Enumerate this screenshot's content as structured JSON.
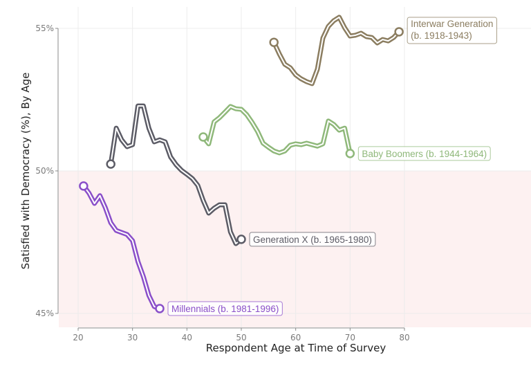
{
  "chart_data": {
    "type": "line",
    "title": "",
    "xlabel": "Respondent Age at Time of Survey",
    "ylabel": "Satisfied with Democracy (%), By Age",
    "xlim": [
      17,
      80
    ],
    "ylim": [
      44.5,
      55.5
    ],
    "x_ticks": [
      20,
      30,
      40,
      50,
      60,
      70,
      80
    ],
    "y_ticks": [
      45,
      50,
      55
    ],
    "y_tick_labels": [
      "45%",
      "50%",
      "55%"
    ],
    "grid": true,
    "shaded_region": {
      "y_from": 44.5,
      "y_to": 50,
      "color": "#fdf1f1",
      "meaning": "below 50% satisfaction"
    },
    "series": [
      {
        "name": "Interwar Generation",
        "label_line1": "Interwar Generation",
        "label_line2": " (b. 1918-1943)",
        "color": "#8b7d60",
        "x": [
          56,
          57,
          58,
          59,
          60,
          61,
          62,
          63,
          64,
          65,
          66,
          67,
          68,
          69,
          70,
          71,
          72,
          73,
          74,
          75,
          76,
          77,
          78,
          79
        ],
        "values": [
          54.51,
          54.1,
          53.74,
          53.62,
          53.37,
          53.23,
          53.13,
          53.06,
          53.57,
          54.66,
          55.07,
          55.27,
          55.39,
          55.02,
          54.73,
          54.76,
          54.83,
          54.71,
          54.68,
          54.49,
          54.61,
          54.56,
          54.68,
          54.88
        ]
      },
      {
        "name": "Baby Boomers",
        "label_line1": "Baby Boomers (b. 1944-1964)",
        "label_line2": "",
        "color": "#8fb87a",
        "x": [
          43,
          44,
          45,
          46,
          47,
          48,
          49,
          50,
          51,
          52,
          53,
          54,
          55,
          56,
          57,
          58,
          59,
          60,
          61,
          62,
          63,
          64,
          65,
          66,
          67,
          68,
          69,
          70
        ],
        "values": [
          51.19,
          50.95,
          51.72,
          51.87,
          52.06,
          52.26,
          52.18,
          52.16,
          51.97,
          51.7,
          51.38,
          50.97,
          50.83,
          50.7,
          50.63,
          50.7,
          50.9,
          50.95,
          50.92,
          50.97,
          50.92,
          50.87,
          50.95,
          51.75,
          51.63,
          51.43,
          51.5,
          50.61
        ]
      },
      {
        "name": "Generation X",
        "label_line1": "Generation X (b. 1965-1980)",
        "label_line2": "",
        "color": "#5c5c66",
        "x": [
          26,
          27,
          28,
          29,
          30,
          31,
          32,
          33,
          34,
          35,
          36,
          37,
          38,
          39,
          40,
          41,
          42,
          43,
          44,
          45,
          46,
          47,
          48,
          49,
          50
        ],
        "values": [
          50.24,
          51.5,
          51.09,
          50.85,
          50.92,
          52.28,
          52.28,
          51.5,
          51.02,
          51.09,
          51.02,
          50.49,
          50.22,
          50.02,
          49.88,
          49.73,
          49.49,
          48.96,
          48.52,
          48.69,
          48.81,
          48.81,
          47.86,
          47.45,
          47.6
        ]
      },
      {
        "name": "Millennials",
        "label_line1": "Millennials (b. 1981-1996)",
        "label_line2": "",
        "color": "#8a4fc9",
        "x": [
          21,
          22,
          23,
          24,
          25,
          26,
          27,
          28,
          29,
          30,
          31,
          32,
          33,
          34,
          35
        ],
        "values": [
          49.47,
          49.22,
          48.86,
          49.13,
          48.71,
          48.18,
          47.91,
          47.84,
          47.77,
          47.55,
          46.82,
          46.29,
          45.63,
          45.24,
          45.17
        ]
      }
    ]
  }
}
